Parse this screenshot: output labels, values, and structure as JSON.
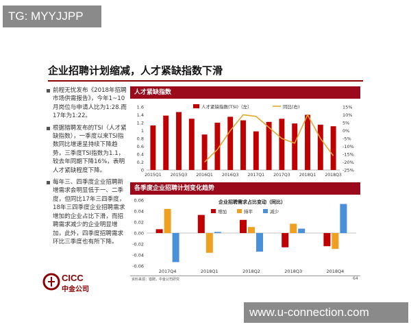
{
  "watermarks": {
    "top_left": "TG: MYYJJPP",
    "bottom_right": "www.u-connection.com"
  },
  "slide": {
    "title": "企业招聘计划缩减，人才紧缺指数下滑",
    "bullets": [
      "前程无忧发布《2018年招聘市场供需报告》，今年1~10月岗位与申请人比为1:28.而17年为1:22。",
      "根据猎聘发布的TSI（人才紧缺指数），一季度以来TSI指数同比增速呈持续下降趋势，三季度TSI指数为1.1，较去年同期下降16%，表明人才紧缺程度下降。",
      "每年三、四季度企业招聘新增需求会明显低于一、二季度，但同比17年三四季度，18年三四季度企业招聘需求增加的企业占比下滑，而招聘需求减少的企业明显增加，此外，四季度招聘需求环比三季度也有所下降。"
    ],
    "source": "资料来源：猎聘，中金公司研究",
    "page_number": "64",
    "logo": {
      "name": "CICC",
      "chinese": "中金公司"
    }
  },
  "chart_data": [
    {
      "type": "bar",
      "header": "人才紧缺指数",
      "title": "",
      "categories": [
        "2015Q1",
        "",
        "2015Q3",
        "",
        "2016Q1",
        "",
        "2016Q3",
        "",
        "2017Q1",
        "",
        "2017Q3",
        "",
        "2018Q1",
        "",
        "2018Q3"
      ],
      "series": [
        {
          "name": "人才紧缺指数(TSI)（左）",
          "type": "bar",
          "color": "#c00000",
          "axis": "left",
          "values": [
            1.13,
            1.38,
            1.47,
            1.3,
            0.9,
            1.2,
            1.35,
            1.26,
            0.98,
            1.22,
            1.3,
            1.18,
            1.4,
            1.15,
            1.11
          ]
        },
        {
          "name": "同比(右)",
          "type": "line",
          "color": "#e0a830",
          "axis": "right",
          "values": [
            null,
            null,
            null,
            null,
            -20,
            -12,
            0,
            10,
            9,
            2,
            -5,
            -8,
            10,
            -5,
            -16
          ]
        }
      ],
      "ylim_left": [
        0,
        1.6
      ],
      "yticks_left": [
        "0",
        "0.2",
        "0.4",
        "0.6",
        "0.8",
        "1",
        "1.2",
        "1.4",
        "1.6"
      ],
      "ylim_right": [
        -25,
        15
      ],
      "yticks_right": [
        "-25%",
        "-20%",
        "-15%",
        "-10%",
        "-5%",
        "0%",
        "5%",
        "10%",
        "15%"
      ],
      "legend_position": "top"
    },
    {
      "type": "bar",
      "header": "各季度企业招聘计划变化趋势",
      "title": "企业招聘需求占比变动（同比）",
      "categories": [
        "2017Q4",
        "2018Q1",
        "2018Q2",
        "2018Q3",
        "2018Q4"
      ],
      "series": [
        {
          "name": "增加",
          "color": "#c00000",
          "values": [
            0.007,
            0.033,
            0.024,
            -0.026,
            -0.024
          ]
        },
        {
          "name": "持平",
          "color": "#f0a020",
          "values": [
            0.044,
            -0.036,
            0.011,
            0.017,
            -0.029
          ]
        },
        {
          "name": "减少",
          "color": "#4a90d9",
          "values": [
            -0.053,
            0.002,
            -0.034,
            0.008,
            0.053
          ]
        }
      ],
      "ylim": [
        -0.06,
        0.06
      ],
      "yticks": [
        "-0.06",
        "-0.04",
        "-0.02",
        "0.00",
        "0.02",
        "0.04",
        "0.06"
      ],
      "legend_position": "top-right"
    }
  ]
}
